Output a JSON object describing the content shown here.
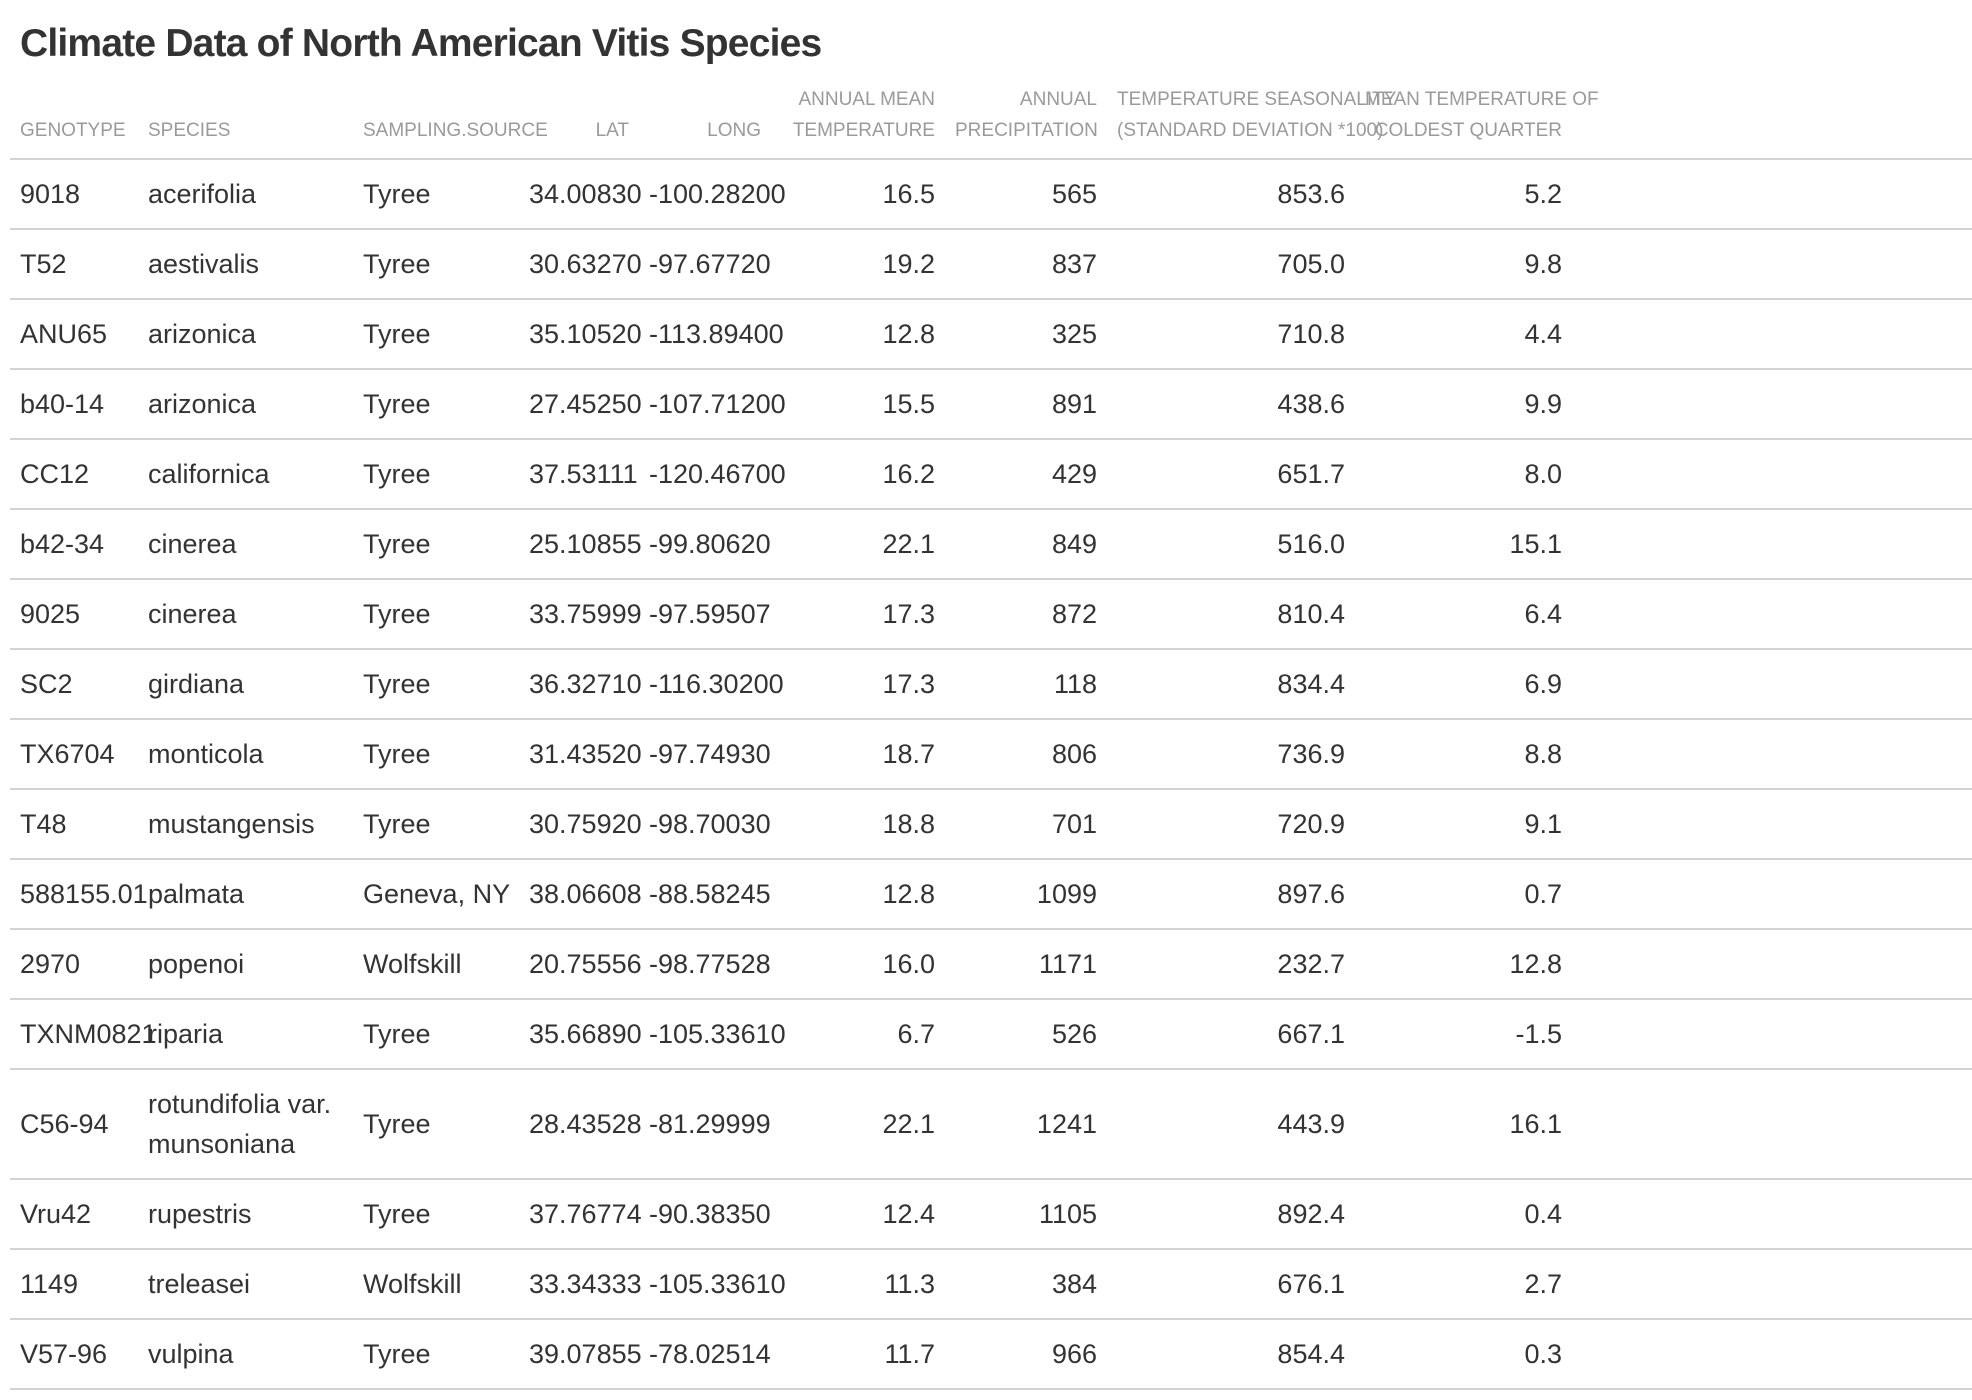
{
  "title": "Climate Data of North American Vitis Species",
  "columns": [
    {
      "label": "GENOTYPE",
      "align": "left"
    },
    {
      "label": "SPECIES",
      "align": "left"
    },
    {
      "label": "SAMPLING.SOURCE",
      "align": "left"
    },
    {
      "label": "LAT",
      "align": "right"
    },
    {
      "label": "LONG",
      "align": "right"
    },
    {
      "label_line1": "ANNUAL MEAN",
      "label_line2": "TEMPERATURE",
      "align": "right"
    },
    {
      "label_line1": "ANNUAL",
      "label_line2": "PRECIPITATION",
      "align": "right"
    },
    {
      "label_line1": "TEMPERATURE SEASONALITY",
      "label_line2": "(STANDARD DEVIATION *100)",
      "align": "right"
    },
    {
      "label_line1": "MEAN TEMPERATURE OF",
      "label_line2": "COLDEST QUARTER",
      "align": "right"
    }
  ],
  "rows": [
    [
      "9018",
      "acerifolia",
      "Tyree",
      "34.00830",
      "-100.28200",
      "16.5",
      "565",
      "853.6",
      "5.2"
    ],
    [
      "T52",
      "aestivalis",
      "Tyree",
      "30.63270",
      "-97.67720",
      "19.2",
      "837",
      "705.0",
      "9.8"
    ],
    [
      "ANU65",
      "arizonica",
      "Tyree",
      "35.10520",
      "-113.89400",
      "12.8",
      "325",
      "710.8",
      "4.4"
    ],
    [
      "b40-14",
      "arizonica",
      "Tyree",
      "27.45250",
      "-107.71200",
      "15.5",
      "891",
      "438.6",
      "9.9"
    ],
    [
      "CC12",
      "californica",
      "Tyree",
      "37.53111",
      "-120.46700",
      "16.2",
      "429",
      "651.7",
      "8.0"
    ],
    [
      "b42-34",
      "cinerea",
      "Tyree",
      "25.10855",
      "-99.80620",
      "22.1",
      "849",
      "516.0",
      "15.1"
    ],
    [
      "9025",
      "cinerea",
      "Tyree",
      "33.75999",
      "-97.59507",
      "17.3",
      "872",
      "810.4",
      "6.4"
    ],
    [
      "SC2",
      "girdiana",
      "Tyree",
      "36.32710",
      "-116.30200",
      "17.3",
      "118",
      "834.4",
      "6.9"
    ],
    [
      "TX6704",
      "monticola",
      "Tyree",
      "31.43520",
      "-97.74930",
      "18.7",
      "806",
      "736.9",
      "8.8"
    ],
    [
      "T48",
      "mustangensis",
      "Tyree",
      "30.75920",
      "-98.70030",
      "18.8",
      "701",
      "720.9",
      "9.1"
    ],
    [
      "588155.01",
      "palmata",
      "Geneva, NY",
      "38.06608",
      "-88.58245",
      "12.8",
      "1099",
      "897.6",
      "0.7"
    ],
    [
      "2970",
      "popenoi",
      "Wolfskill",
      "20.75556",
      "-98.77528",
      "16.0",
      "1171",
      "232.7",
      "12.8"
    ],
    [
      "TXNM0821",
      "riparia",
      "Tyree",
      "35.66890",
      "-105.33610",
      "6.7",
      "526",
      "667.1",
      "-1.5"
    ],
    [
      "C56-94",
      "rotundifolia var. munsoniana",
      "Tyree",
      "28.43528",
      "-81.29999",
      "22.1",
      "1241",
      "443.9",
      "16.1"
    ],
    [
      "Vru42",
      "rupestris",
      "Tyree",
      "37.76774",
      "-90.38350",
      "12.4",
      "1105",
      "892.4",
      "0.4"
    ],
    [
      "1149",
      "treleasei",
      "Wolfskill",
      "33.34333",
      "-105.33610",
      "11.3",
      "384",
      "676.1",
      "2.7"
    ],
    [
      "V57-96",
      "vulpina",
      "Tyree",
      "39.07855",
      "-78.02514",
      "11.7",
      "966",
      "854.4",
      "0.3"
    ]
  ]
}
